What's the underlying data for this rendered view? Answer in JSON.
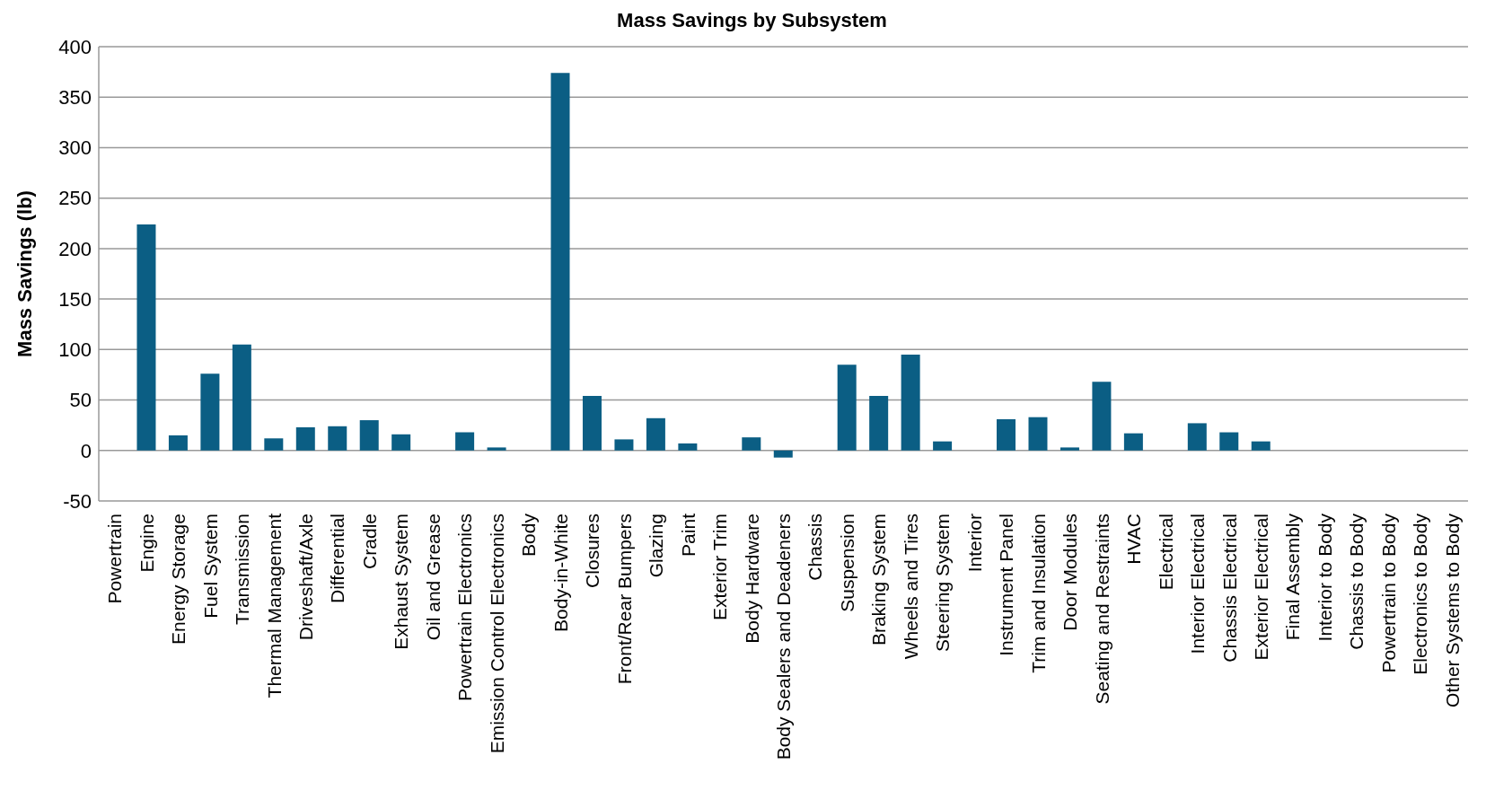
{
  "chart_data": {
    "type": "bar",
    "title": "Mass Savings by Subsystem",
    "ylabel": "Mass Savings (lb)",
    "categories": [
      "Powertrain",
      "Engine",
      "Energy Storage",
      "Fuel System",
      "Transmission",
      "Thermal Management",
      "Driveshaft/Axle",
      "Differential",
      "Cradle",
      "Exhaust System",
      "Oil and Grease",
      "Powertrain Electronics",
      "Emission Control Electronics",
      "Body",
      "Body-in-White",
      "Closures",
      "Front/Rear Bumpers",
      "Glazing",
      "Paint",
      "Exterior Trim",
      "Body Hardware",
      "Body Sealers and Deadeners",
      "Chassis",
      "Suspension",
      "Braking System",
      "Wheels and Tires",
      "Steering System",
      "Interior",
      "Instrument Panel",
      "Trim and Insulation",
      "Door Modules",
      "Seating and Restraints",
      "HVAC",
      "Electrical",
      "Interior Electrical",
      "Chassis Electrical",
      "Exterior Electrical",
      "Final Assembly",
      "Interior to Body",
      "Chassis to Body",
      "Powertrain to Body",
      "Electronics to Body",
      "Other Systems to Body"
    ],
    "values": [
      0,
      224,
      15,
      76,
      105,
      12,
      23,
      24,
      30,
      16,
      0,
      18,
      3,
      0,
      374,
      54,
      11,
      32,
      7,
      0,
      13,
      -7,
      0,
      85,
      54,
      95,
      9,
      0,
      31,
      33,
      3,
      68,
      17,
      0,
      27,
      18,
      9,
      0,
      0,
      0,
      0,
      0,
      0
    ],
    "color": "#0b5e84",
    "ylim": [
      -50,
      400
    ],
    "yticks": [
      -50,
      0,
      50,
      100,
      150,
      200,
      250,
      300,
      350,
      400
    ],
    "grid": "y"
  }
}
